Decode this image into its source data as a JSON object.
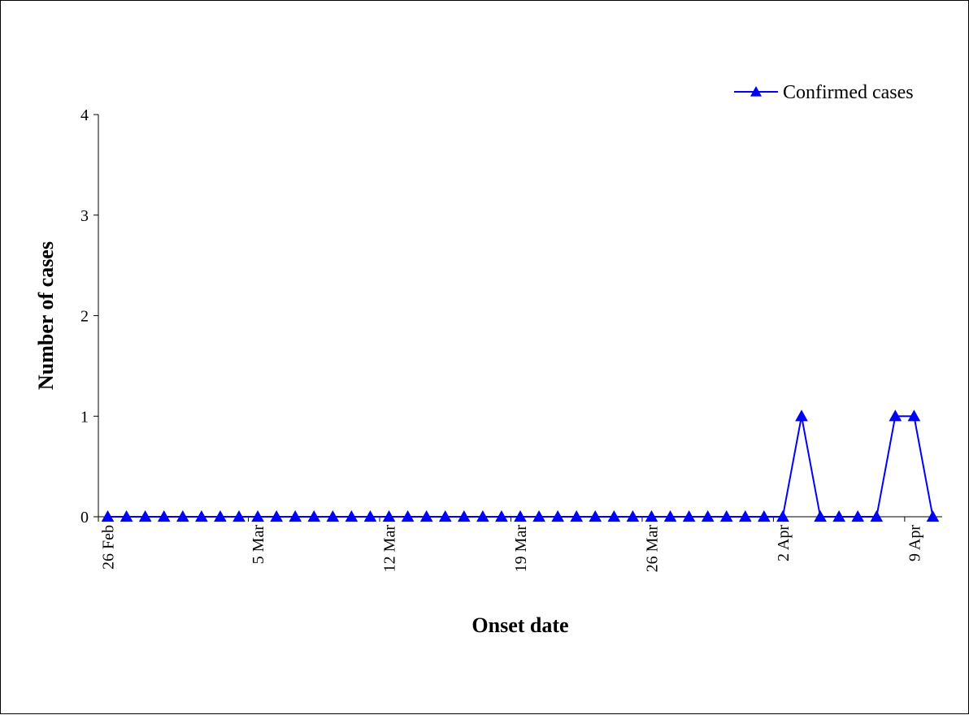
{
  "chart_data": {
    "type": "line",
    "title": "",
    "xlabel": "Onset date",
    "ylabel": "Number of cases",
    "ylim": [
      0,
      4
    ],
    "yticks": [
      "0",
      "1",
      "2",
      "3",
      "4"
    ],
    "grid": false,
    "legend_position": "top-right",
    "x": [
      "26 Feb",
      "27 Feb",
      "28 Feb",
      "29 Feb",
      "1 Mar",
      "2 Mar",
      "3 Mar",
      "4 Mar",
      "5 Mar",
      "6 Mar",
      "7 Mar",
      "8 Mar",
      "9 Mar",
      "10 Mar",
      "11 Mar",
      "12 Mar",
      "13 Mar",
      "14 Mar",
      "15 Mar",
      "16 Mar",
      "17 Mar",
      "18 Mar",
      "19 Mar",
      "20 Mar",
      "21 Mar",
      "22 Mar",
      "23 Mar",
      "24 Mar",
      "25 Mar",
      "26 Mar",
      "27 Mar",
      "28 Mar",
      "29 Mar",
      "30 Mar",
      "31 Mar",
      "1 Apr",
      "2 Apr",
      "3 Apr",
      "4 Apr",
      "5 Apr",
      "6 Apr",
      "7 Apr",
      "8 Apr",
      "9 Apr",
      "10 Apr"
    ],
    "x_tick_labels": [
      "26 Feb",
      "5 Mar",
      "12 Mar",
      "19 Mar",
      "26 Mar",
      "2 Apr",
      "9 Apr"
    ],
    "series": [
      {
        "name": "Confirmed cases",
        "color": "#0000ff",
        "marker": "triangle",
        "values": [
          0,
          0,
          0,
          0,
          0,
          0,
          0,
          0,
          0,
          0,
          0,
          0,
          0,
          0,
          0,
          0,
          0,
          0,
          0,
          0,
          0,
          0,
          0,
          0,
          0,
          0,
          0,
          0,
          0,
          0,
          0,
          0,
          0,
          0,
          0,
          0,
          0,
          1,
          0,
          0,
          0,
          0,
          1,
          1,
          0
        ]
      }
    ]
  }
}
